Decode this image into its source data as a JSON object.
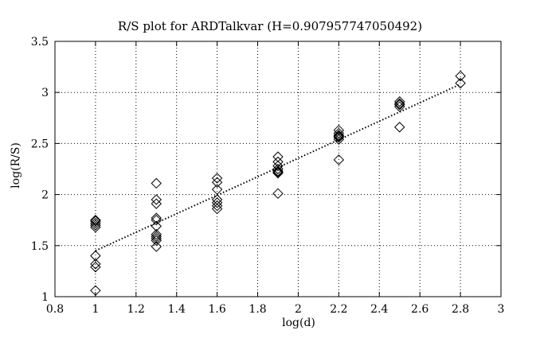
{
  "chart_data": {
    "type": "scatter",
    "title": "R/S plot for ARDTalkvar (H=0.907957747050492)",
    "xlabel": "log(d)",
    "ylabel": "log(R/S)",
    "xlim": [
      0.8,
      3
    ],
    "ylim": [
      1,
      3.5
    ],
    "xticks": [
      "0.8",
      "1",
      "1.2",
      "1.4",
      "1.6",
      "1.8",
      "2",
      "2.2",
      "2.4",
      "2.6",
      "2.8",
      "3"
    ],
    "yticks": [
      "1",
      "1.5",
      "2",
      "2.5",
      "3",
      "3.5"
    ],
    "grid": true,
    "marker": "diamond",
    "series": [
      {
        "points": [
          [
            1.0,
            1.06
          ],
          [
            1.0,
            1.29
          ],
          [
            1.0,
            1.32
          ],
          [
            1.0,
            1.4
          ],
          [
            1.0,
            1.68
          ],
          [
            1.0,
            1.7
          ],
          [
            1.0,
            1.72
          ],
          [
            1.0,
            1.74
          ],
          [
            1.0,
            1.75
          ],
          [
            1.3,
            1.49
          ],
          [
            1.3,
            1.55
          ],
          [
            1.3,
            1.57
          ],
          [
            1.3,
            1.59
          ],
          [
            1.3,
            1.61
          ],
          [
            1.3,
            1.69
          ],
          [
            1.3,
            1.75
          ],
          [
            1.3,
            1.77
          ],
          [
            1.3,
            1.91
          ],
          [
            1.3,
            1.95
          ],
          [
            1.3,
            2.11
          ],
          [
            1.6,
            1.86
          ],
          [
            1.6,
            1.89
          ],
          [
            1.6,
            1.92
          ],
          [
            1.6,
            1.95
          ],
          [
            1.6,
            2.05
          ],
          [
            1.6,
            2.12
          ],
          [
            1.6,
            2.16
          ],
          [
            1.9,
            2.01
          ],
          [
            1.9,
            2.21
          ],
          [
            1.9,
            2.22
          ],
          [
            1.9,
            2.23
          ],
          [
            1.9,
            2.25
          ],
          [
            1.9,
            2.28
          ],
          [
            1.9,
            2.32
          ],
          [
            1.9,
            2.37
          ],
          [
            2.2,
            2.34
          ],
          [
            2.2,
            2.54
          ],
          [
            2.2,
            2.56
          ],
          [
            2.2,
            2.57
          ],
          [
            2.2,
            2.58
          ],
          [
            2.2,
            2.6
          ],
          [
            2.2,
            2.63
          ],
          [
            2.5,
            2.66
          ],
          [
            2.5,
            2.86
          ],
          [
            2.5,
            2.88
          ],
          [
            2.5,
            2.89
          ],
          [
            2.5,
            2.91
          ],
          [
            2.8,
            3.09
          ],
          [
            2.8,
            3.16
          ]
        ]
      }
    ],
    "fit_line": {
      "x": [
        1.0,
        2.8
      ],
      "y": [
        1.45,
        3.08
      ],
      "style": "dotted"
    }
  }
}
